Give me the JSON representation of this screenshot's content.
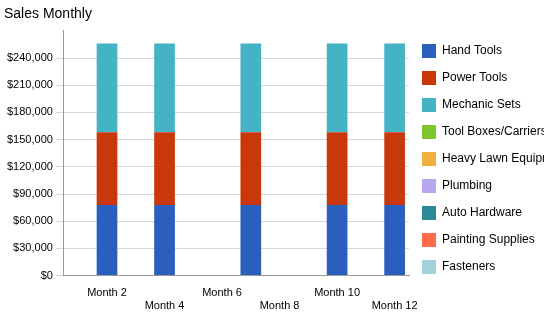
{
  "chart_data": {
    "type": "bar",
    "title": "Sales Monthly",
    "stacked": true,
    "grid": true,
    "legend": "right",
    "categories": [
      null,
      "Month 2",
      null,
      "Month 4",
      null,
      "Month 6",
      null,
      "Month 8",
      null,
      "Month 10",
      null,
      "Month 12"
    ],
    "series": [
      {
        "name": "Hand Tools",
        "color": "#2a5fbd",
        "values": [
          0,
          78000,
          0,
          78000,
          0,
          0,
          78000,
          0,
          0,
          78000,
          0,
          78000
        ]
      },
      {
        "name": "Power Tools",
        "color": "#c8380a",
        "values": [
          0,
          80000,
          0,
          80000,
          0,
          0,
          80000,
          0,
          0,
          80000,
          0,
          80000
        ]
      },
      {
        "name": "Mechanic Sets",
        "color": "#45b3c6",
        "values": [
          0,
          98000,
          0,
          98000,
          0,
          0,
          98000,
          0,
          0,
          98000,
          0,
          98000
        ]
      },
      {
        "name": "Tool Boxes/Carriers",
        "color": "#7cc62e",
        "values": [
          0,
          0,
          0,
          0,
          0,
          0,
          0,
          0,
          0,
          0,
          0,
          0
        ]
      },
      {
        "name": "Heavy Lawn Equipment",
        "color": "#f0b03c",
        "values": [
          0,
          0,
          0,
          0,
          0,
          0,
          0,
          0,
          0,
          0,
          0,
          0
        ]
      },
      {
        "name": "Plumbing",
        "color": "#b9a6f0",
        "values": [
          0,
          0,
          0,
          0,
          0,
          0,
          0,
          0,
          0,
          0,
          0,
          0
        ]
      },
      {
        "name": "Auto Hardware",
        "color": "#2a8a96",
        "values": [
          0,
          0,
          0,
          0,
          0,
          0,
          0,
          0,
          0,
          0,
          0,
          0
        ]
      },
      {
        "name": "Painting Supplies",
        "color": "#ff6a4a",
        "values": [
          0,
          0,
          0,
          0,
          0,
          0,
          0,
          0,
          0,
          0,
          0,
          0
        ]
      },
      {
        "name": "Fasteners",
        "color": "#a3d2da",
        "values": [
          0,
          0,
          0,
          0,
          0,
          0,
          0,
          0,
          0,
          0,
          0,
          0
        ]
      }
    ],
    "ylim": [
      0,
      270000
    ],
    "yticks": [
      {
        "value": 0,
        "label": "$0"
      },
      {
        "value": 30000,
        "label": "$30,000"
      },
      {
        "value": 60000,
        "label": "$60,000"
      },
      {
        "value": 90000,
        "label": "$90,000"
      },
      {
        "value": 120000,
        "label": "$120,000"
      },
      {
        "value": 150000,
        "label": "$150,000"
      },
      {
        "value": 180000,
        "label": "$180,000"
      },
      {
        "value": 210000,
        "label": "$210,000"
      },
      {
        "value": 240000,
        "label": "$240,000"
      }
    ]
  }
}
